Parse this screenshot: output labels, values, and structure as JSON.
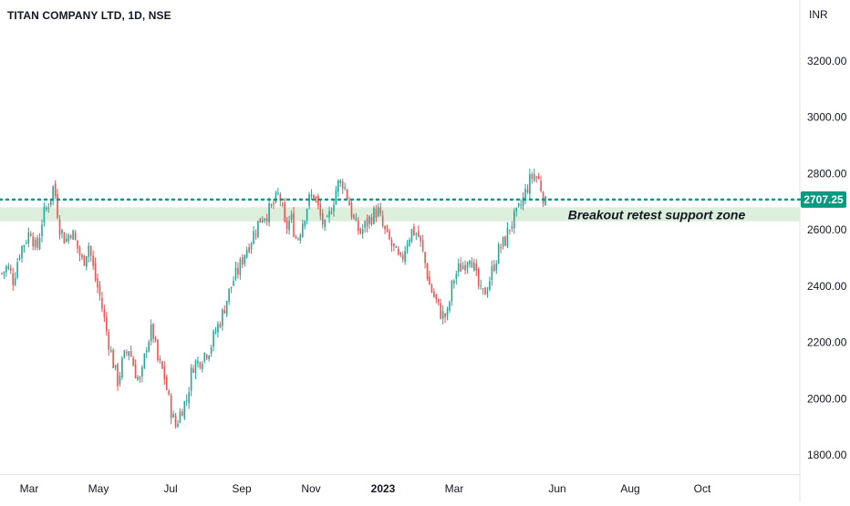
{
  "header": {
    "symbol_line": "TITAN COMPANY LTD, 1D, NSE",
    "currency": "INR"
  },
  "colors": {
    "up": "#26a69a",
    "down": "#ef5350",
    "price_line": "#089981",
    "zone_fill": "#dcefdc",
    "axis_text": "#131722",
    "axis_line": "#e0e3eb"
  },
  "chart_data": {
    "type": "candlestick",
    "title": "TITAN COMPANY LTD, 1D, NSE",
    "y_unit": "INR",
    "ylim": [
      1760,
      3360
    ],
    "y_ticks": [
      "1800.00",
      "2000.00",
      "2200.00",
      "2400.00",
      "2600.00",
      "2800.00",
      "3000.00",
      "3200.00"
    ],
    "x_ticks": [
      "Mar",
      "May",
      "Jul",
      "Sep",
      "Nov",
      "2023",
      "Mar",
      "Jun",
      "Aug",
      "Oct"
    ],
    "grid": false,
    "current_price": 2707.25,
    "current_price_label": "2707.25",
    "support_zone": {
      "low": 2630,
      "high": 2680,
      "label": "Breakout retest support zone"
    },
    "price_path_closes": [
      2445,
      2470,
      2420,
      2520,
      2560,
      2600,
      2520,
      2640,
      2690,
      2760,
      2610,
      2560,
      2600,
      2540,
      2480,
      2550,
      2440,
      2360,
      2250,
      2150,
      2060,
      2140,
      2180,
      2100,
      2050,
      2190,
      2250,
      2130,
      2090,
      1980,
      1900,
      1960,
      2000,
      2120,
      2130,
      2160,
      2180,
      2240,
      2290,
      2360,
      2420,
      2460,
      2520,
      2560,
      2610,
      2650,
      2660,
      2690,
      2730,
      2600,
      2640,
      2560,
      2630,
      2700,
      2730,
      2650,
      2600,
      2680,
      2760,
      2770,
      2700,
      2620,
      2590,
      2620,
      2650,
      2670,
      2600,
      2560,
      2520,
      2480,
      2560,
      2600,
      2580,
      2500,
      2400,
      2350,
      2300,
      2290,
      2420,
      2460,
      2480,
      2520,
      2430,
      2360,
      2400,
      2470,
      2530,
      2560,
      2620,
      2650,
      2700,
      2760,
      2800,
      2770,
      2690
    ]
  }
}
